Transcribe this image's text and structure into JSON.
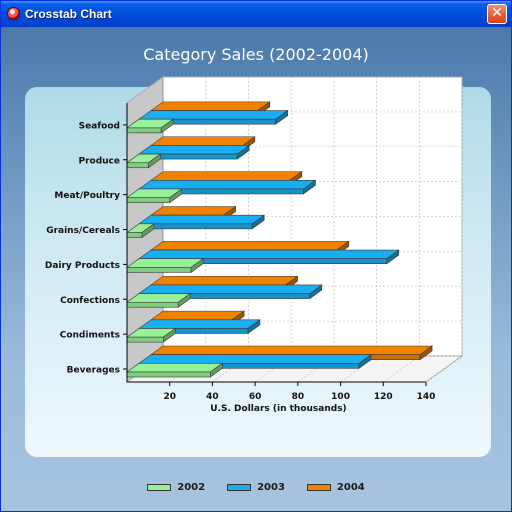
{
  "window": {
    "title": "Crosstab Chart",
    "close_label": "✕"
  },
  "colors": {
    "2002": "#98f098",
    "2003": "#19aef0",
    "2004": "#f08200"
  },
  "chart_data": {
    "type": "bar",
    "orientation": "horizontal",
    "three_d": true,
    "title": "Category Sales (2002-2004)",
    "xlabel": "U.S. Dollars (in thousands)",
    "ylabel": "",
    "xlim": [
      0,
      140
    ],
    "x_ticks": [
      "20",
      "40",
      "60",
      "80",
      "100",
      "120",
      "140"
    ],
    "grid": true,
    "legend_position": "bottom",
    "categories": [
      "Beverages",
      "Condiments",
      "Confections",
      "Dairy Products",
      "Grains/Cereals",
      "Meat/Poultry",
      "Produce",
      "Seafood"
    ],
    "series": [
      {
        "name": "2002",
        "values": [
          39,
          17,
          24,
          30,
          7,
          20,
          10,
          16
        ]
      },
      {
        "name": "2003",
        "values": [
          103,
          51,
          80,
          116,
          53,
          77,
          46,
          64
        ]
      },
      {
        "name": "2004",
        "values": [
          126,
          38,
          63,
          87,
          34,
          65,
          43,
          50
        ]
      }
    ]
  }
}
